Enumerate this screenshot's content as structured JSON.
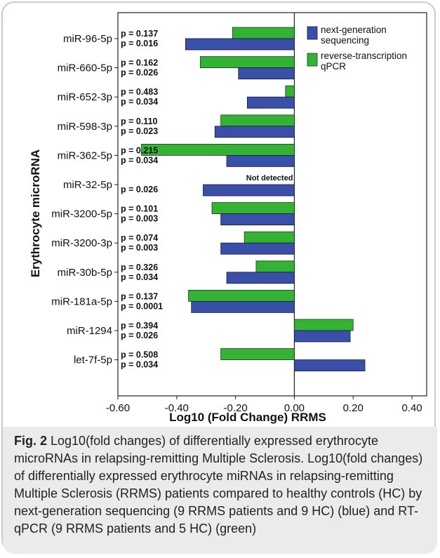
{
  "chart_data": {
    "type": "bar",
    "orientation": "horizontal",
    "ylabel": "Erythrocyte microRNA",
    "xlabel": "Log10 (Fold Change) RRMS",
    "xlim": [
      -0.6,
      0.45
    ],
    "xticks": [
      "-0.60",
      "-0.40",
      "-0.20",
      "0.00",
      "0.20",
      "0.40"
    ],
    "xtick_values": [
      -0.6,
      -0.4,
      -0.2,
      0.0,
      0.2,
      0.4
    ],
    "grid": false,
    "legend_position": "top-right",
    "series": [
      {
        "name": "next-generation sequencing",
        "color": "#3a4fa8"
      },
      {
        "name": "reverse-transcription qPCR",
        "color": "#33b233"
      }
    ],
    "categories": [
      {
        "label": "miR-96-5p",
        "ngs": -0.37,
        "qpcr": -0.21,
        "p_qpcr": "p = 0.137",
        "p_ngs": "p = 0.016"
      },
      {
        "label": "miR-660-5p",
        "ngs": -0.19,
        "qpcr": -0.32,
        "p_qpcr": "p = 0.162",
        "p_ngs": "p = 0.026"
      },
      {
        "label": "miR-652-3p",
        "ngs": -0.16,
        "qpcr": -0.03,
        "p_qpcr": "p = 0.483",
        "p_ngs": "p = 0.034"
      },
      {
        "label": "miR-598-3p",
        "ngs": -0.27,
        "qpcr": -0.25,
        "p_qpcr": "p = 0.110",
        "p_ngs": "p = 0.023"
      },
      {
        "label": "miR-362-5p",
        "ngs": -0.23,
        "qpcr": -0.52,
        "p_qpcr": "p = 0.215",
        "p_ngs": "p = 0.034"
      },
      {
        "label": "miR-32-5p",
        "ngs": -0.31,
        "qpcr": null,
        "p_qpcr": "",
        "p_ngs": "p = 0.026",
        "note": "Not detected"
      },
      {
        "label": "miR-3200-5p",
        "ngs": -0.25,
        "qpcr": -0.28,
        "p_qpcr": "p = 0.101",
        "p_ngs": "p = 0.003"
      },
      {
        "label": "miR-3200-3p",
        "ngs": -0.25,
        "qpcr": -0.17,
        "p_qpcr": "p = 0.074",
        "p_ngs": "p = 0.003"
      },
      {
        "label": "miR-30b-5p",
        "ngs": -0.23,
        "qpcr": -0.13,
        "p_qpcr": "p = 0.326",
        "p_ngs": "p = 0.034"
      },
      {
        "label": "miR-181a-5p",
        "ngs": -0.35,
        "qpcr": -0.36,
        "p_qpcr": "p = 0.137",
        "p_ngs": "p = 0.0001"
      },
      {
        "label": "miR-1294",
        "ngs": 0.19,
        "qpcr": 0.2,
        "p_qpcr": "p = 0.394",
        "p_ngs": "p = 0.026"
      },
      {
        "label": "let-7f-5p",
        "ngs": 0.24,
        "qpcr": -0.25,
        "p_qpcr": "p = 0.508",
        "p_ngs": "p = 0.034"
      }
    ]
  },
  "caption": {
    "fig_label": "Fig. 2",
    "text": " Log10(fold changes) of differentially expressed erythrocyte microRNAs in relapsing-remitting Multiple Sclerosis. Log10(fold changes) of differentially expressed erythrocyte miRNAs in relapsing-remitting Multiple Sclerosis (RRMS) patients compared to healthy controls (HC) by next-generation sequencing (9 RRMS patients and 9 HC) (blue) and RT-qPCR (9 RRMS patients and 5 HC) (green)"
  }
}
